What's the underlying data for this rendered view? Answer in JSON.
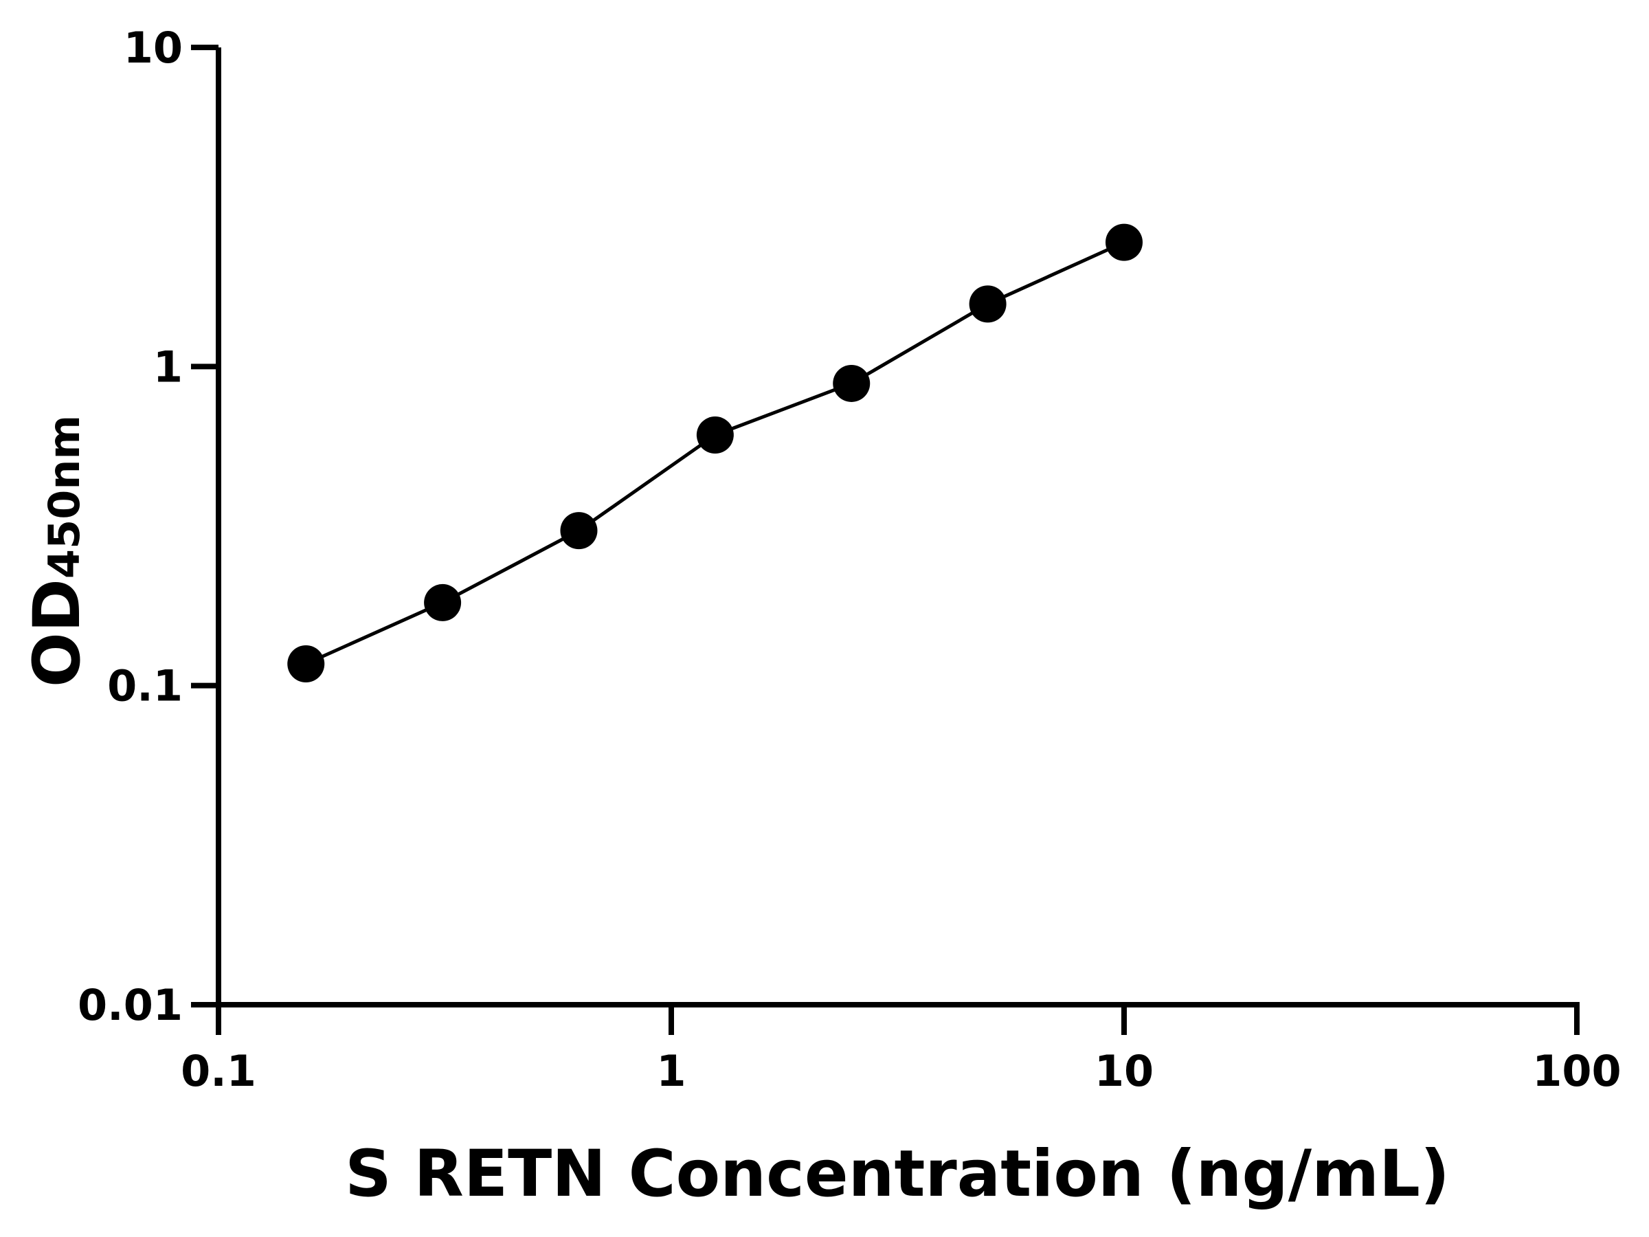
{
  "chart_data": {
    "type": "line",
    "title": "",
    "xlabel": "S RETN Concentration (ng/mL)",
    "ylabel": "OD",
    "ylabel_subscript": "450nm",
    "xscale": "log",
    "yscale": "log",
    "xlim": [
      0.1,
      100
    ],
    "ylim": [
      0.01,
      10
    ],
    "xticks": [
      "0.1",
      "1",
      "10",
      "100"
    ],
    "yticks": [
      "0.01",
      "0.1",
      "1",
      "10"
    ],
    "grid": false,
    "series": [
      {
        "x": [
          0.156,
          0.3125,
          0.625,
          1.25,
          2.5,
          5,
          10
        ],
        "y": [
          0.117,
          0.182,
          0.306,
          0.61,
          0.885,
          1.57,
          2.45
        ],
        "color": "#000000",
        "marker": "circle"
      }
    ]
  }
}
